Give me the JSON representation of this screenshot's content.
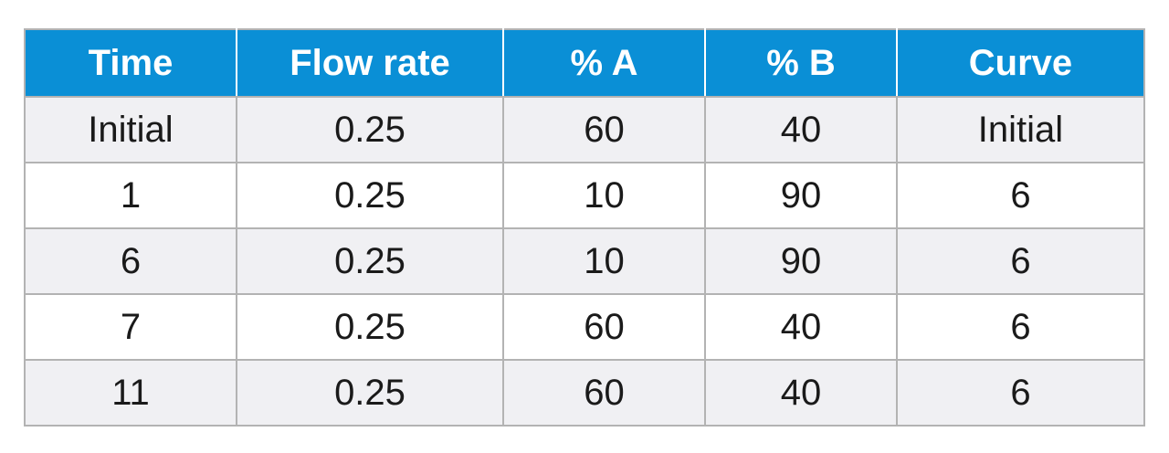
{
  "colors": {
    "header_bg": "#0a8fd6",
    "header_text": "#ffffff",
    "row_alt_bg": "#f0f0f3",
    "row_bg": "#ffffff",
    "grid": "#b3b3b3"
  },
  "table": {
    "headers": [
      "Time",
      "Flow rate",
      "% A",
      "% B",
      "Curve"
    ],
    "rows": [
      [
        "Initial",
        "0.25",
        "60",
        "40",
        "Initial"
      ],
      [
        "1",
        "0.25",
        "10",
        "90",
        "6"
      ],
      [
        "6",
        "0.25",
        "10",
        "90",
        "6"
      ],
      [
        "7",
        "0.25",
        "60",
        "40",
        "6"
      ],
      [
        "11",
        "0.25",
        "60",
        "40",
        "6"
      ]
    ]
  }
}
